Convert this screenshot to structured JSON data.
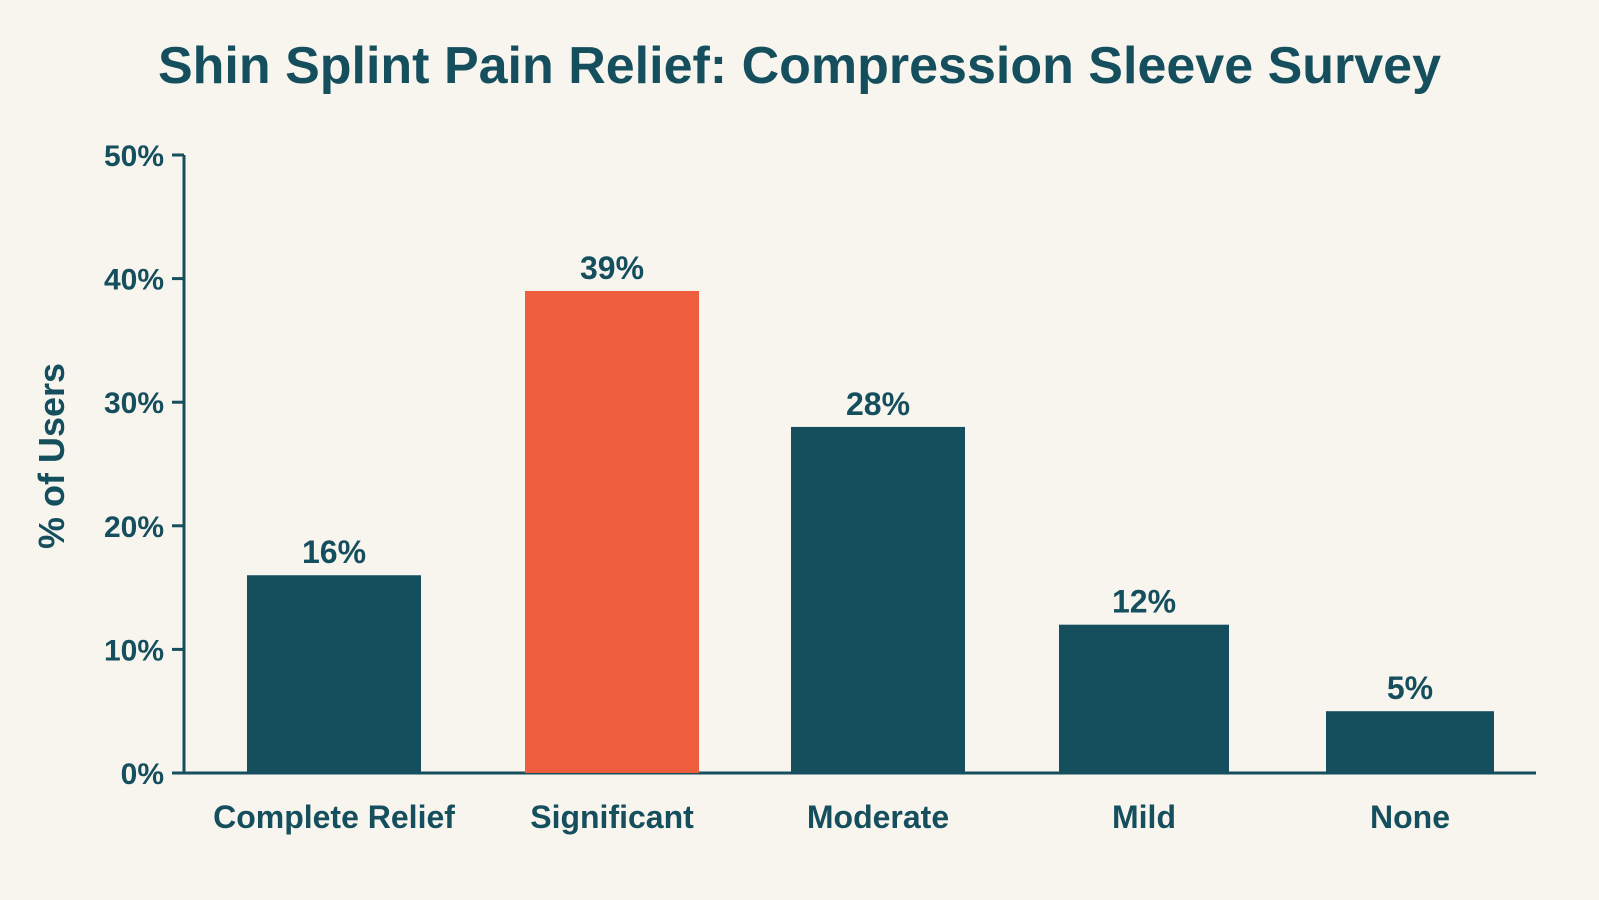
{
  "chart_data": {
    "type": "bar",
    "title": "Shin Splint Pain Relief: Compression Sleeve Survey",
    "xlabel": "",
    "ylabel": "% of Users",
    "ylim": [
      0,
      50
    ],
    "yticks": [
      0,
      10,
      20,
      30,
      40,
      50
    ],
    "ytick_labels": [
      "0%",
      "10%",
      "20%",
      "30%",
      "40%",
      "50%"
    ],
    "categories": [
      "Complete Relief",
      "Significant",
      "Moderate",
      "Mild",
      "None"
    ],
    "values": [
      16,
      39,
      28,
      12,
      5
    ],
    "data_labels": [
      "16%",
      "39%",
      "28%",
      "12%",
      "5%"
    ],
    "highlight_index": 1,
    "colors": {
      "bar": "#154f5e",
      "highlight": "#ef5d3f",
      "axis": "#154f5e",
      "background": "#f8f5ef"
    },
    "grid": false,
    "legend": "none"
  }
}
